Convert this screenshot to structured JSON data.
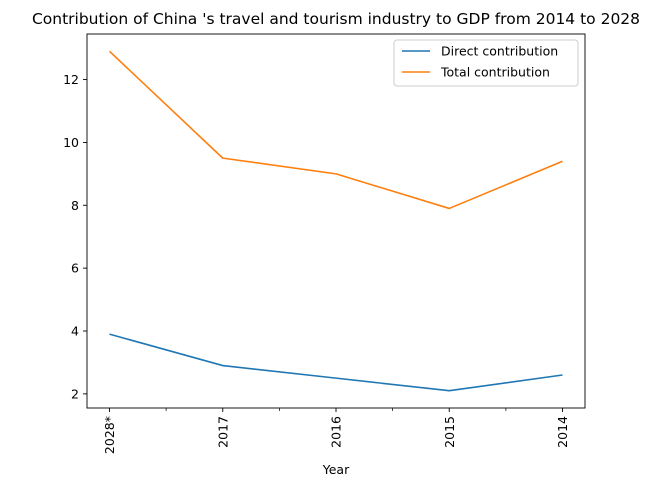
{
  "chart_data": {
    "type": "line",
    "title": "Contribution of China 's travel and tourism industry to GDP from 2014 to 2028",
    "xlabel": "Year",
    "ylabel": "",
    "categories": [
      "2028*",
      "2017",
      "2016",
      "2015",
      "2014"
    ],
    "series": [
      {
        "name": "Direct contribution",
        "values": [
          3.9,
          2.9,
          2.5,
          2.1,
          2.6
        ],
        "color": "#1f77b4"
      },
      {
        "name": "Total contribution",
        "values": [
          12.9,
          9.5,
          9.0,
          7.9,
          9.4
        ],
        "color": "#ff7f0e"
      }
    ],
    "ylim": [
      1.55,
      13.45
    ],
    "yticks": [
      2,
      4,
      6,
      8,
      10,
      12
    ],
    "grid": false,
    "legend_position": "top-right"
  }
}
